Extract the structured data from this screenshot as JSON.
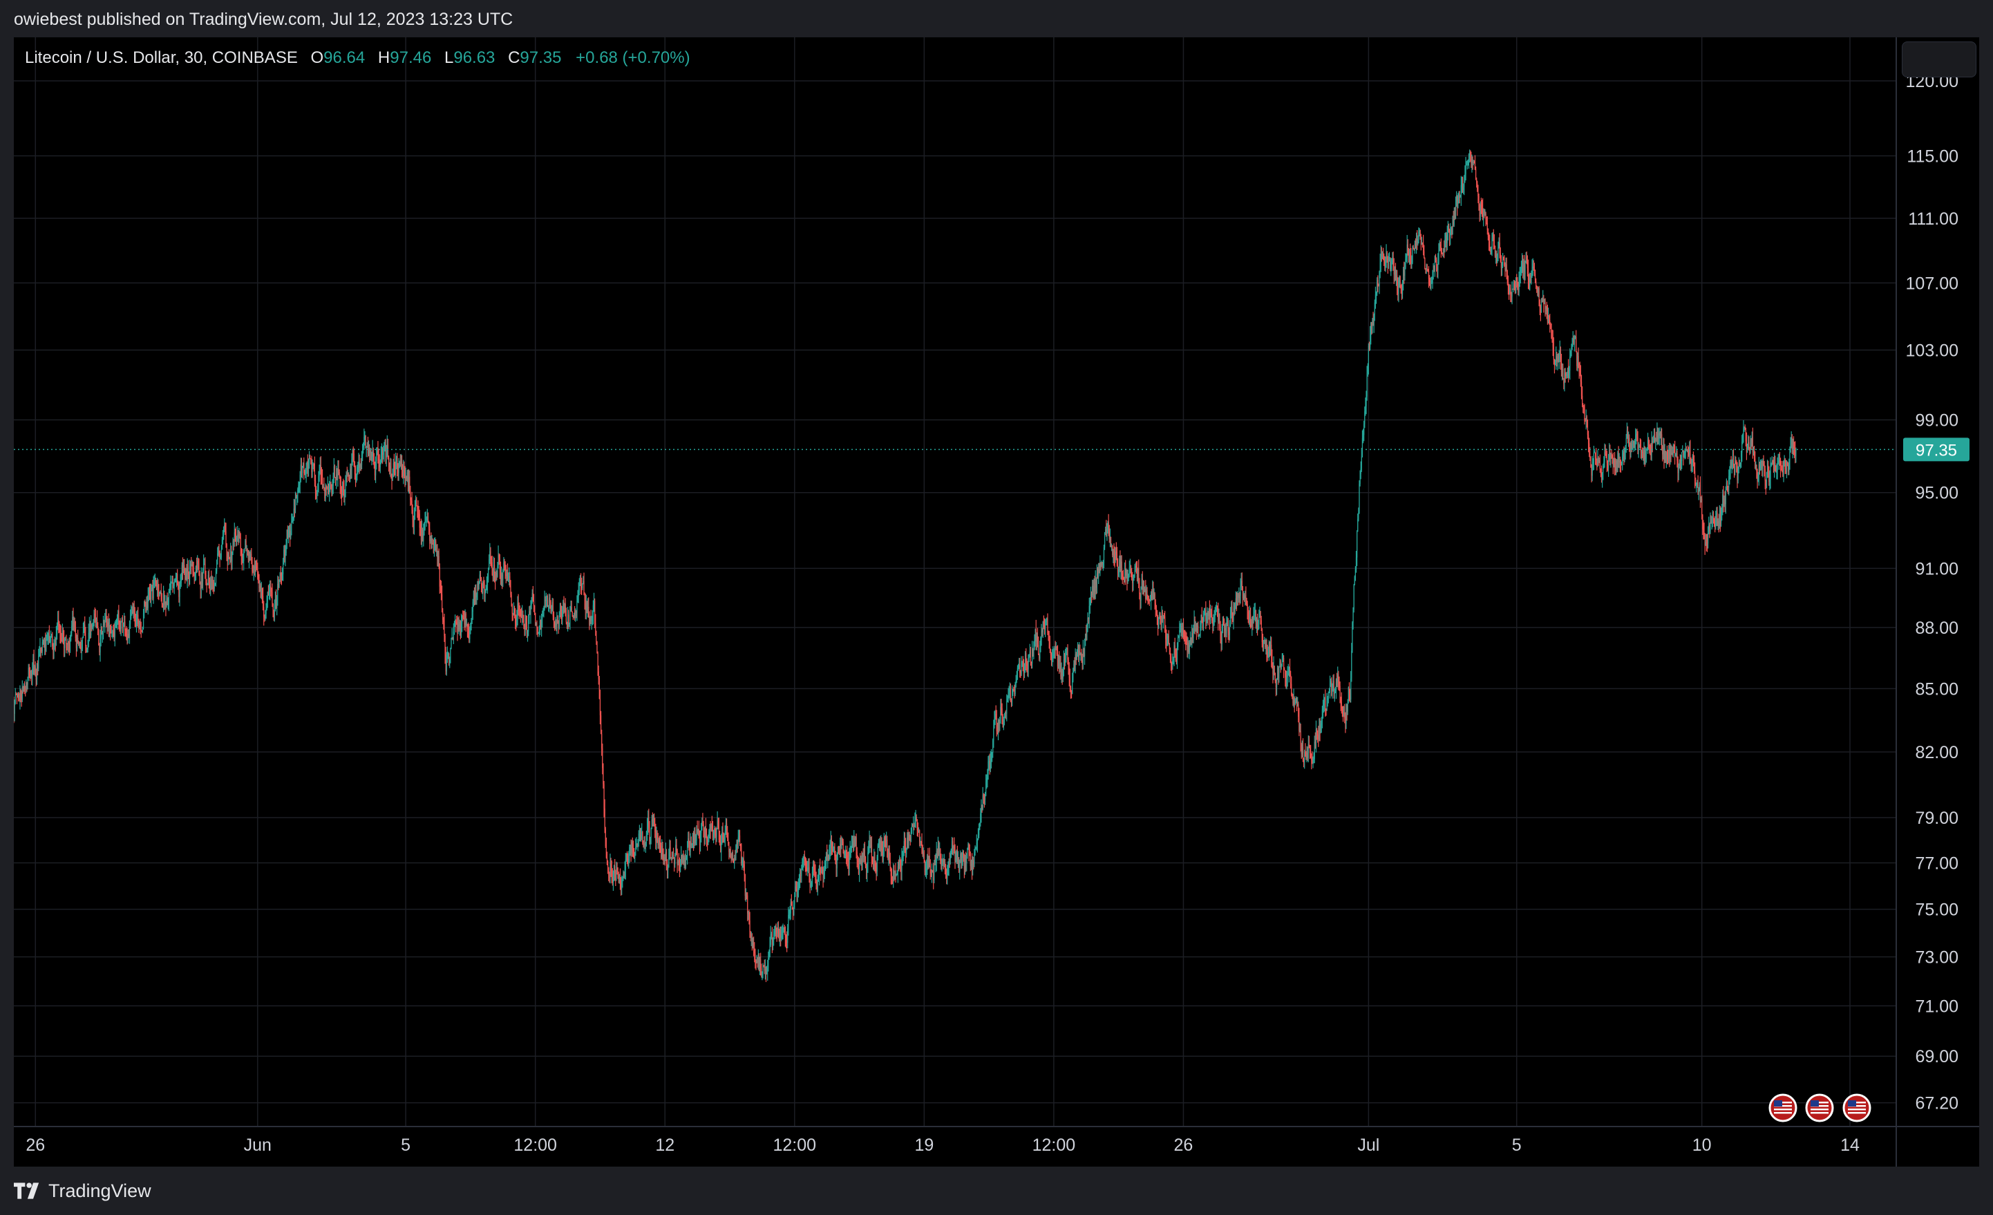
{
  "header": {
    "published_text": "owiebest published on TradingView.com, Jul 12, 2023 13:23 UTC"
  },
  "legend": {
    "symbol": "Litecoin / U.S. Dollar, 30, COINBASE",
    "o_label": "O",
    "o_value": "96.64",
    "h_label": "H",
    "h_value": "97.46",
    "l_label": "L",
    "l_value": "96.63",
    "c_label": "C",
    "c_value": "97.35",
    "change": "+0.68 (+0.70%)"
  },
  "footer": {
    "brand": "TradingView"
  },
  "colors": {
    "up": "#26a69a",
    "down": "#ef5350",
    "grid": "#1c1e24",
    "price_line": "#26a69a",
    "background": "#000000"
  },
  "events": [
    {
      "icon": "us-flag-icon"
    },
    {
      "icon": "us-flag-icon"
    },
    {
      "icon": "us-flag-icon"
    }
  ],
  "chart_data": {
    "type": "candlestick",
    "symbol": "Litecoin / U.S. Dollar",
    "interval": "30",
    "exchange": "COINBASE",
    "current_price": 97.35,
    "current_price_label": "97.35",
    "y_scale": "log",
    "grid": true,
    "y_ticks": [
      "120.00",
      "115.00",
      "111.00",
      "107.00",
      "103.00",
      "99.00",
      "95.00",
      "91.00",
      "88.00",
      "85.00",
      "82.00",
      "79.00",
      "77.00",
      "75.00",
      "73.00",
      "71.00",
      "69.00",
      "67.20"
    ],
    "x_ticks": [
      "26",
      "Jun",
      "5",
      "12:00",
      "12",
      "12:00",
      "19",
      "12:00",
      "26",
      "Jul",
      "5",
      "10",
      "14"
    ],
    "x_ticks_meta": [
      {
        "label": "26",
        "t": "2023-05-26T00:00"
      },
      {
        "label": "Jun",
        "t": "2023-06-01T00:00"
      },
      {
        "label": "5",
        "t": "2023-06-05T00:00"
      },
      {
        "label": "12:00",
        "t": "2023-06-08T12:00"
      },
      {
        "label": "12",
        "t": "2023-06-12T00:00"
      },
      {
        "label": "12:00",
        "t": "2023-06-15T12:00"
      },
      {
        "label": "19",
        "t": "2023-06-19T00:00"
      },
      {
        "label": "12:00",
        "t": "2023-06-22T12:00"
      },
      {
        "label": "26",
        "t": "2023-06-26T00:00"
      },
      {
        "label": "Jul",
        "t": "2023-07-01T00:00"
      },
      {
        "label": "5",
        "t": "2023-07-05T00:00"
      },
      {
        "label": "10",
        "t": "2023-07-10T00:00"
      },
      {
        "label": "14",
        "t": "2023-07-14T00:00"
      }
    ],
    "x_range": [
      "2023-05-25T10:00",
      "2023-07-15T06:00"
    ],
    "y_range": [
      66.3,
      123.0
    ],
    "price_path": [
      [
        "2023-05-25T10:00",
        84.3
      ],
      [
        "2023-05-26T00:00",
        85.8
      ],
      [
        "2023-05-26T12:00",
        87.2
      ],
      [
        "2023-05-27T12:00",
        87.6
      ],
      [
        "2023-05-28T12:00",
        88.2
      ],
      [
        "2023-05-29T06:00",
        89.9
      ],
      [
        "2023-05-29T18:00",
        89.4
      ],
      [
        "2023-05-30T06:00",
        91.6
      ],
      [
        "2023-05-30T18:00",
        90.9
      ],
      [
        "2023-05-31T06:00",
        92.2
      ],
      [
        "2023-05-31T18:00",
        91.7
      ],
      [
        "2023-06-01T00:00",
        89.3
      ],
      [
        "2023-06-01T12:00",
        89.7
      ],
      [
        "2023-06-01T20:00",
        92.4
      ],
      [
        "2023-06-02T06:00",
        95.9
      ],
      [
        "2023-06-02T18:00",
        95.1
      ],
      [
        "2023-06-03T12:00",
        95.8
      ],
      [
        "2023-06-04T00:00",
        97.6
      ],
      [
        "2023-06-04T12:00",
        96.2
      ],
      [
        "2023-06-05T00:00",
        96.0
      ],
      [
        "2023-06-05T12:00",
        92.8
      ],
      [
        "2023-06-05T20:00",
        91.3
      ],
      [
        "2023-06-06T02:00",
        86.5
      ],
      [
        "2023-06-06T12:00",
        87.7
      ],
      [
        "2023-06-07T00:00",
        89.6
      ],
      [
        "2023-06-07T12:00",
        91.3
      ],
      [
        "2023-06-08T00:00",
        89.4
      ],
      [
        "2023-06-08T12:00",
        88.5
      ],
      [
        "2023-06-09T06:00",
        88.4
      ],
      [
        "2023-06-09T18:00",
        89.8
      ],
      [
        "2023-06-10T02:00",
        88.9
      ],
      [
        "2023-06-10T10:00",
        77.9
      ],
      [
        "2023-06-10T20:00",
        76.9
      ],
      [
        "2023-06-11T12:00",
        78.5
      ],
      [
        "2023-06-12T00:00",
        77.6
      ],
      [
        "2023-06-12T12:00",
        77.0
      ],
      [
        "2023-06-13T00:00",
        78.6
      ],
      [
        "2023-06-13T12:00",
        77.9
      ],
      [
        "2023-06-14T00:00",
        77.8
      ],
      [
        "2023-06-14T08:00",
        73.0
      ],
      [
        "2023-06-14T16:00",
        72.3
      ],
      [
        "2023-06-15T06:00",
        74.6
      ],
      [
        "2023-06-16T00:00",
        76.0
      ],
      [
        "2023-06-16T18:00",
        77.6
      ],
      [
        "2023-06-17T12:00",
        77.3
      ],
      [
        "2023-06-18T06:00",
        77.8
      ],
      [
        "2023-06-19T00:00",
        77.5
      ],
      [
        "2023-06-19T18:00",
        77.1
      ],
      [
        "2023-06-20T06:00",
        76.7
      ],
      [
        "2023-06-20T14:00",
        79.5
      ],
      [
        "2023-06-20T22:00",
        82.6
      ],
      [
        "2023-06-21T12:00",
        85.0
      ],
      [
        "2023-06-21T20:00",
        86.3
      ],
      [
        "2023-06-22T06:00",
        87.9
      ],
      [
        "2023-06-22T18:00",
        85.9
      ],
      [
        "2023-06-23T06:00",
        86.4
      ],
      [
        "2023-06-23T14:00",
        89.8
      ],
      [
        "2023-06-23T22:00",
        92.7
      ],
      [
        "2023-06-24T12:00",
        90.6
      ],
      [
        "2023-06-25T00:00",
        89.7
      ],
      [
        "2023-06-25T12:00",
        88.4
      ],
      [
        "2023-06-26T00:00",
        87.1
      ],
      [
        "2023-06-26T12:00",
        88.6
      ],
      [
        "2023-06-27T00:00",
        87.4
      ],
      [
        "2023-06-27T12:00",
        89.2
      ],
      [
        "2023-06-28T00:00",
        88.1
      ],
      [
        "2023-06-28T12:00",
        86.4
      ],
      [
        "2023-06-28T20:00",
        85.0
      ],
      [
        "2023-06-29T06:00",
        82.4
      ],
      [
        "2023-06-29T18:00",
        83.8
      ],
      [
        "2023-06-30T06:00",
        84.6
      ],
      [
        "2023-06-30T12:00",
        85.2
      ],
      [
        "2023-06-30T18:00",
        95.6
      ],
      [
        "2023-07-01T00:00",
        102.6
      ],
      [
        "2023-07-01T08:00",
        108.3
      ],
      [
        "2023-07-01T20:00",
        107.1
      ],
      [
        "2023-07-02T06:00",
        109.9
      ],
      [
        "2023-07-02T18:00",
        107.6
      ],
      [
        "2023-07-03T06:00",
        111.5
      ],
      [
        "2023-07-03T18:00",
        113.6
      ],
      [
        "2023-07-04T06:00",
        110.9
      ],
      [
        "2023-07-04T18:00",
        107.3
      ],
      [
        "2023-07-05T06:00",
        107.8
      ],
      [
        "2023-07-05T18:00",
        105.1
      ],
      [
        "2023-07-06T06:00",
        101.1
      ],
      [
        "2023-07-06T14:00",
        104.3
      ],
      [
        "2023-07-06T22:00",
        98.6
      ],
      [
        "2023-07-07T06:00",
        95.7
      ],
      [
        "2023-07-07T18:00",
        96.9
      ],
      [
        "2023-07-08T06:00",
        97.6
      ],
      [
        "2023-07-08T18:00",
        97.1
      ],
      [
        "2023-07-09T06:00",
        96.9
      ],
      [
        "2023-07-09T18:00",
        95.6
      ],
      [
        "2023-07-10T02:00",
        92.9
      ],
      [
        "2023-07-10T10:00",
        93.6
      ],
      [
        "2023-07-10T20:00",
        95.9
      ],
      [
        "2023-07-11T06:00",
        97.5
      ],
      [
        "2023-07-11T18:00",
        96.3
      ],
      [
        "2023-07-12T06:00",
        96.6
      ],
      [
        "2023-07-12T13:00",
        97.35
      ]
    ]
  }
}
